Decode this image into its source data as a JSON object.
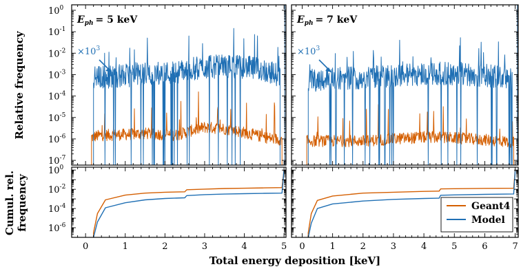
{
  "chart_data": [
    {
      "panel": "top-left",
      "type": "line",
      "annotation": "E_ph = 5 keV",
      "annotation_lhs": "E",
      "annotation_sub": "ph",
      "annotation_rhs": "= 5 keV",
      "scale_note_base": "×10",
      "scale_note_exp": "3",
      "ylabel": "Relative frequency",
      "yscale": "log",
      "xlim": [
        -0.35,
        5.05
      ],
      "ylim": [
        6e-08,
        1.8
      ],
      "yticks": [
        1,
        0.1,
        0.01,
        0.001,
        0.0001,
        1e-05,
        1e-06,
        1e-07
      ],
      "ytick_labels": [
        [
          "10",
          "0"
        ],
        [
          "10",
          "-1"
        ],
        [
          "10",
          "-2"
        ],
        [
          "10",
          "-3"
        ],
        [
          "10",
          "-4"
        ],
        [
          "10",
          "-5"
        ],
        [
          "10",
          "-6"
        ],
        [
          "10",
          "-7"
        ]
      ],
      "series": [
        {
          "name": "Geant4",
          "x": [
            0.15,
            0.4,
            1.0,
            1.5,
            2.0,
            2.3,
            2.5,
            3.0,
            3.5,
            4.0,
            4.5,
            4.95
          ],
          "values": [
            1.2e-06,
            1.5e-06,
            1.6e-06,
            1.8e-06,
            1.6e-06,
            1.5e-06,
            2e-06,
            3.5e-06,
            3e-06,
            2e-06,
            1.2e-06,
            9e-07
          ]
        },
        {
          "name": "Model",
          "x": [
            0.2,
            0.5,
            1.0,
            1.5,
            2.0,
            2.3,
            2.5,
            3.0,
            3.5,
            4.0,
            4.5,
            4.9
          ],
          "values": [
            0.0007,
            0.0008,
            0.0009,
            0.0011,
            0.0012,
            0.0013,
            0.0016,
            0.0022,
            0.0025,
            0.0023,
            0.0016,
            0.0009
          ]
        }
      ]
    },
    {
      "panel": "top-right",
      "type": "line",
      "annotation": "E_ph = 7 keV",
      "annotation_lhs": "E",
      "annotation_sub": "ph",
      "annotation_rhs": "= 7 keV",
      "scale_note_base": "×10",
      "scale_note_exp": "3",
      "yscale": "log",
      "xlim": [
        -0.35,
        7.1
      ],
      "ylim": [
        6e-08,
        1.8
      ],
      "series": [
        {
          "name": "Geant4",
          "x": [
            0.15,
            0.5,
            1.0,
            1.5,
            2.0,
            2.5,
            3.0,
            3.5,
            4.0,
            4.5,
            5.0,
            5.5,
            6.0,
            6.5,
            6.95
          ],
          "values": [
            8e-07,
            8e-07,
            8e-07,
            8e-07,
            8e-07,
            9e-07,
            1e-06,
            1.1e-06,
            1.2e-06,
            1.2e-06,
            1.1e-06,
            1e-06,
            9e-07,
            8e-07,
            7e-07
          ]
        },
        {
          "name": "Model",
          "x": [
            0.2,
            0.5,
            1.0,
            1.5,
            2.0,
            2.5,
            3.0,
            3.5,
            4.0,
            4.5,
            5.0,
            5.5,
            6.0,
            6.5,
            6.9
          ],
          "values": [
            0.0005,
            0.0006,
            0.0007,
            0.0007,
            0.0007,
            0.0008,
            0.0009,
            0.001,
            0.0011,
            0.0011,
            0.0011,
            0.001,
            0.0009,
            0.0008,
            0.0006
          ]
        }
      ]
    },
    {
      "panel": "bottom-left",
      "type": "line",
      "ylabel_line1": "Cumul. rel.",
      "ylabel_line2": "frequency",
      "yscale": "log",
      "xlim": [
        -0.35,
        5.05
      ],
      "ylim": [
        1e-07,
        2
      ],
      "yticks": [
        1,
        0.01,
        0.0001,
        1e-06
      ],
      "ytick_labels": [
        [
          "10",
          "0"
        ],
        [
          "10",
          "-2"
        ],
        [
          "10",
          "-4"
        ],
        [
          "10",
          "-6"
        ]
      ],
      "xticks": [
        0,
        1,
        2,
        3,
        4,
        5
      ],
      "xtick_labels": [
        "0",
        "1",
        "2",
        "3",
        "4",
        "5"
      ],
      "series": [
        {
          "name": "Geant4",
          "x": [
            0.2,
            0.3,
            0.5,
            1.0,
            1.5,
            2.0,
            2.5,
            2.55,
            3.0,
            3.5,
            4.0,
            4.5,
            4.95,
            5.0
          ],
          "values": [
            3e-07,
            3e-05,
            0.0008,
            0.0025,
            0.004,
            0.005,
            0.0055,
            0.009,
            0.0105,
            0.012,
            0.013,
            0.014,
            0.015,
            1
          ]
        },
        {
          "name": "Model",
          "x": [
            0.2,
            0.3,
            0.5,
            1.0,
            1.5,
            2.0,
            2.5,
            2.55,
            3.0,
            3.5,
            4.0,
            4.5,
            4.95,
            5.0
          ],
          "values": [
            1e-07,
            4e-06,
            0.00012,
            0.0004,
            0.0008,
            0.0011,
            0.0013,
            0.0022,
            0.0028,
            0.0032,
            0.0035,
            0.0038,
            0.004,
            1
          ]
        }
      ]
    },
    {
      "panel": "bottom-right",
      "type": "line",
      "yscale": "log",
      "xlim": [
        -0.35,
        7.1
      ],
      "ylim": [
        1e-07,
        2
      ],
      "xticks": [
        0,
        1,
        2,
        3,
        4,
        5,
        6,
        7
      ],
      "xtick_labels": [
        "0",
        "1",
        "2",
        "3",
        "4",
        "5",
        "6",
        "7"
      ],
      "legend": {
        "placement": "bottom-right",
        "entries": [
          "Geant4",
          "Model"
        ]
      },
      "series": [
        {
          "name": "Geant4",
          "x": [
            0.2,
            0.3,
            0.5,
            1.0,
            2.0,
            3.0,
            4.0,
            4.5,
            4.55,
            5.0,
            6.0,
            6.95,
            7.0
          ],
          "values": [
            3e-07,
            3e-05,
            0.0007,
            0.002,
            0.004,
            0.005,
            0.006,
            0.0065,
            0.011,
            0.0115,
            0.0125,
            0.013,
            1
          ]
        },
        {
          "name": "Model",
          "x": [
            0.2,
            0.3,
            0.5,
            1.0,
            2.0,
            3.0,
            4.0,
            4.5,
            4.55,
            5.0,
            6.0,
            6.95,
            7.0
          ],
          "values": [
            1e-07,
            3e-06,
            0.0001,
            0.0003,
            0.0006,
            0.0009,
            0.0011,
            0.0012,
            0.0024,
            0.0026,
            0.003,
            0.0033,
            1
          ]
        }
      ]
    }
  ],
  "xlabel": "Total energy deposition [keV]",
  "colors": {
    "Geant4": "#d45e00",
    "Model": "#1f6fb4"
  }
}
